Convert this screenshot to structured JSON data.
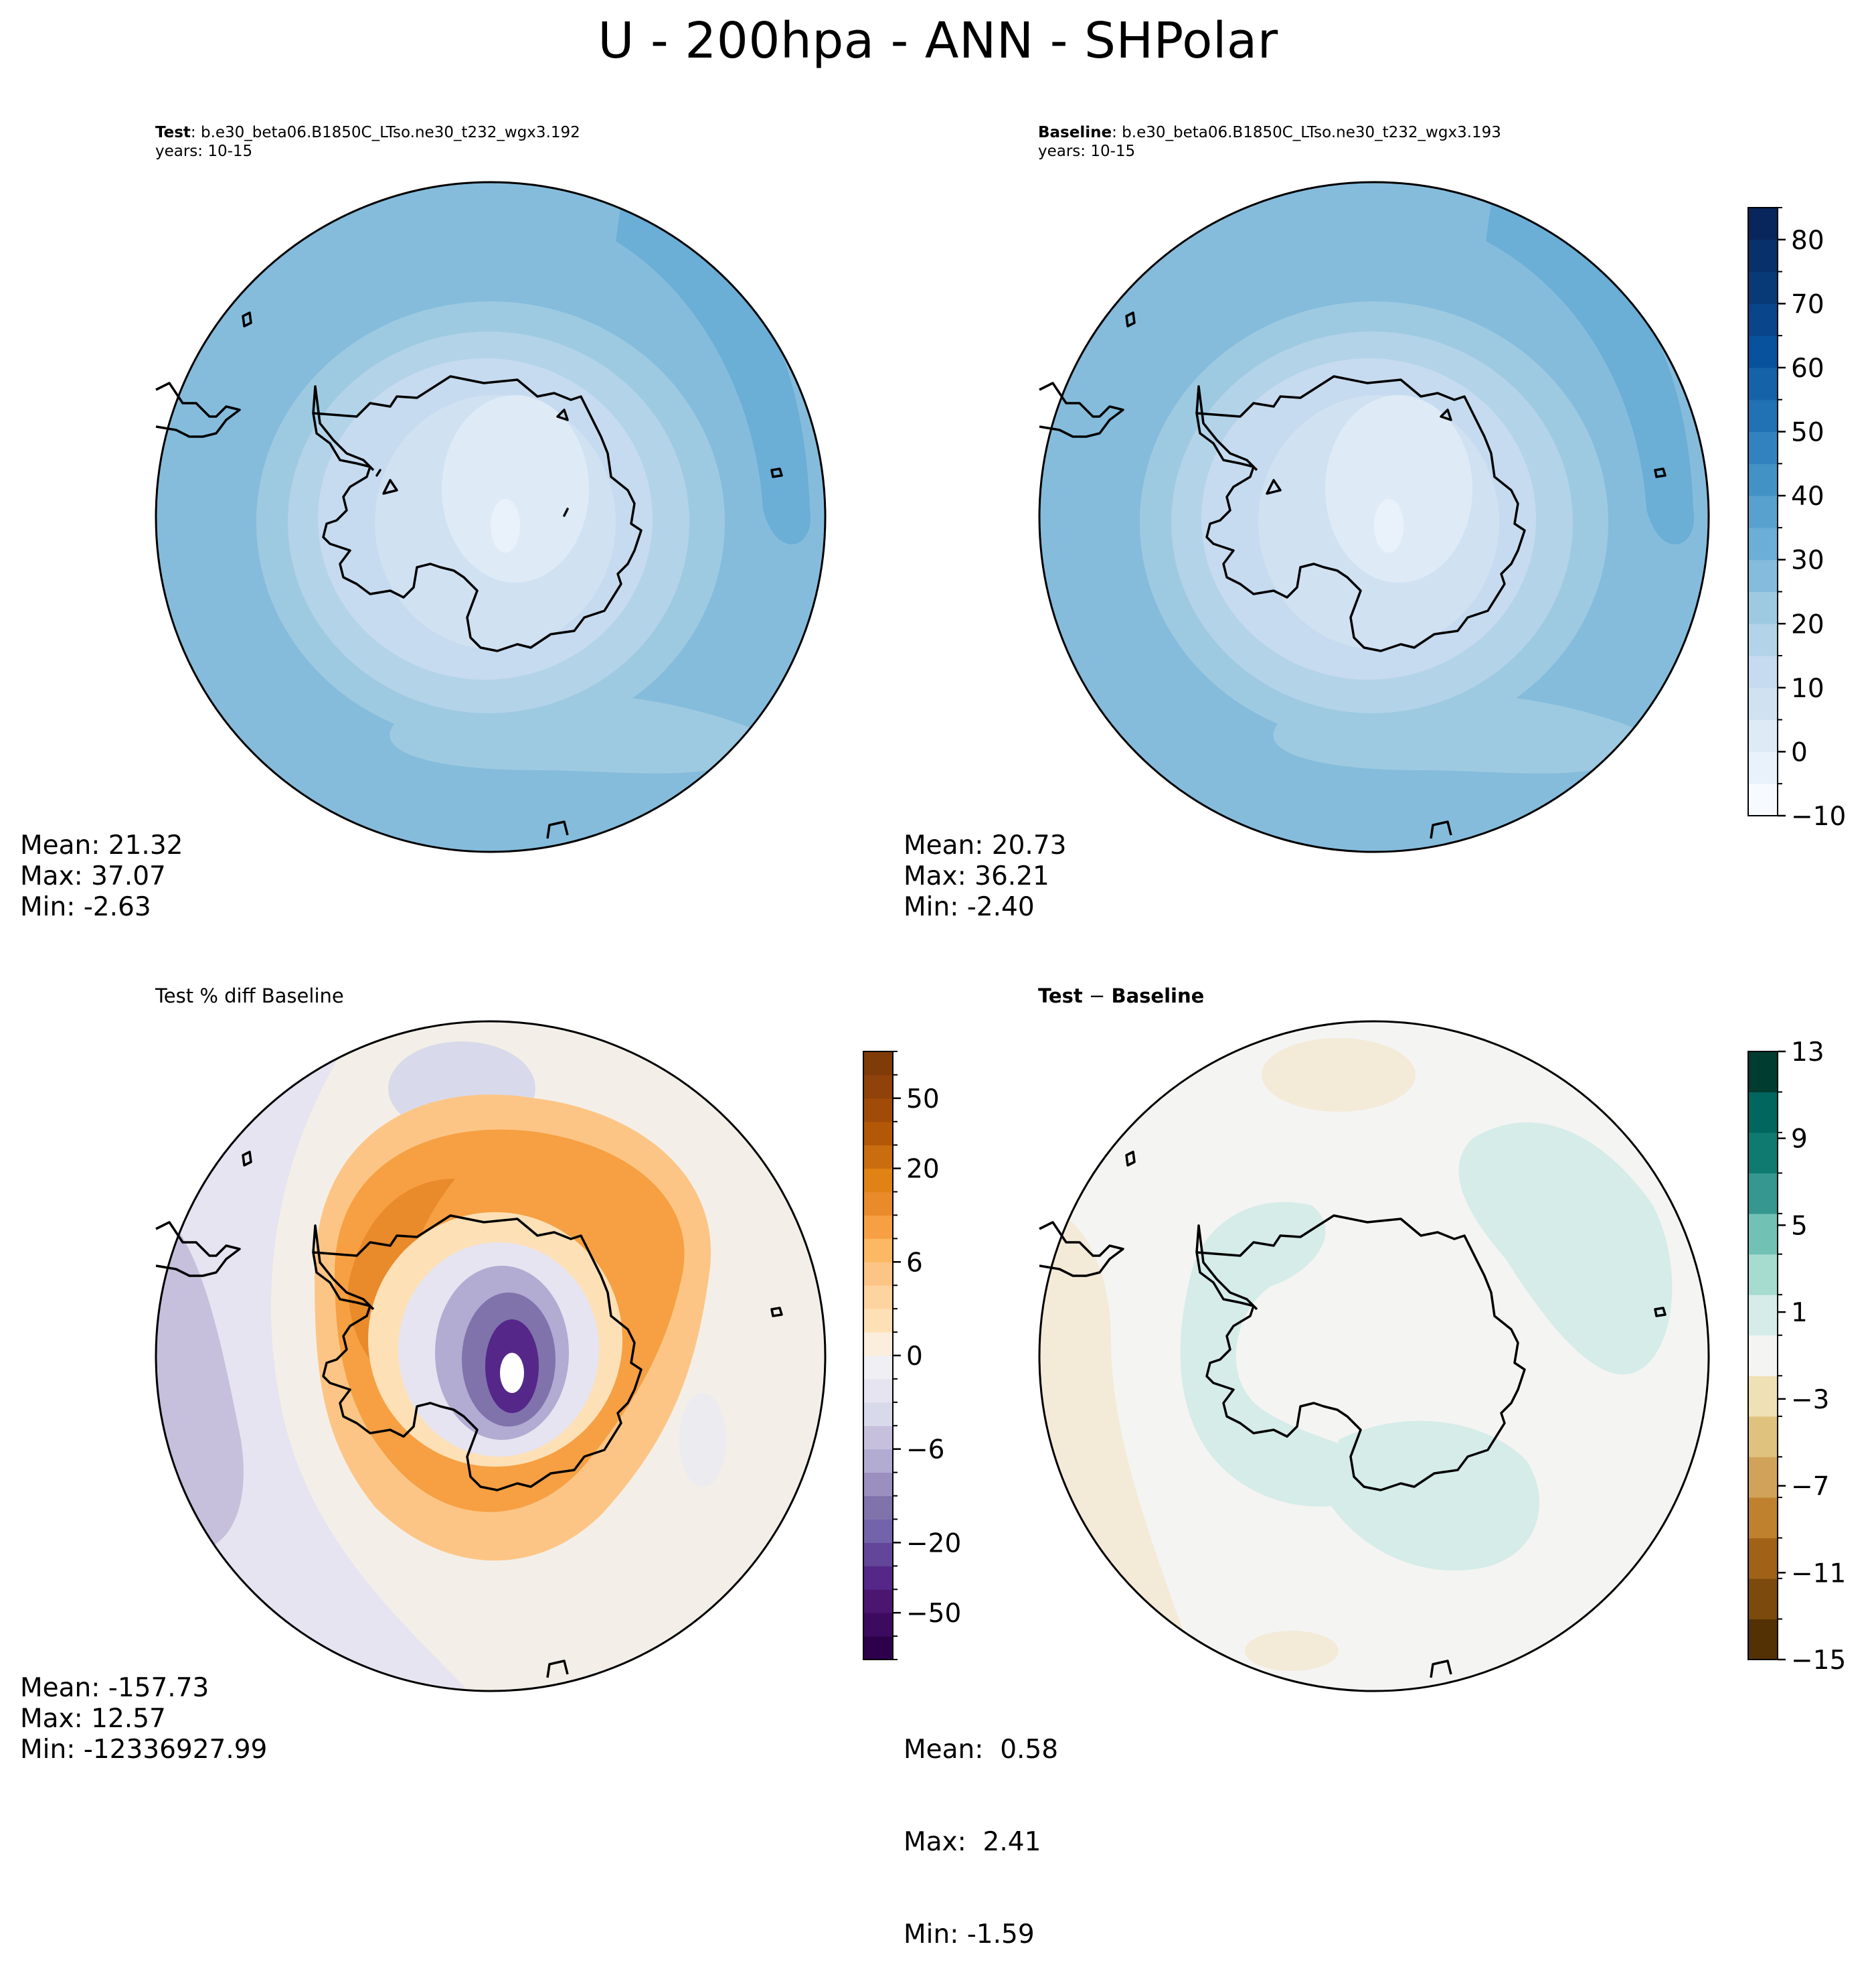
{
  "title": "U - 200hpa - ANN - SHPolar",
  "panels": {
    "test": {
      "label": "Test",
      "case": ": b.e30_beta06.B1850C_LTso.ne30_t232_wgx3.192",
      "years": "years: 10-15",
      "stats": {
        "mean_label": "Mean: 21.32",
        "max_label": "Max: 37.07",
        "min_label": "Min: -2.63"
      }
    },
    "baseline": {
      "label": "Baseline",
      "case": ": b.e30_beta06.B1850C_LTso.ne30_t232_wgx3.193",
      "years": "years: 10-15",
      "stats": {
        "mean_label": "Mean: 20.73",
        "max_label": "Max: 36.21",
        "min_label": "Min: -2.40"
      }
    },
    "pctdiff": {
      "title": "Test % diff Baseline",
      "stats": {
        "mean_label": "Mean: -157.73",
        "max_label": "Max: 12.57",
        "min_label": "Min: -12336927.99"
      }
    },
    "diff": {
      "title_a": "Test",
      "title_op": " − ",
      "title_b": "Baseline",
      "stats": {
        "mean_label": "Mean:  0.58",
        "max_label": "Max:  2.41",
        "min_label": "Min: -1.59"
      }
    }
  },
  "chart_data": [
    {
      "type": "heatmap",
      "name": "Test",
      "projection": "South Polar Stereographic",
      "field": "U 200hPa",
      "mean": 21.32,
      "max": 37.07,
      "min": -2.63,
      "colorbar_shared_with": "Baseline"
    },
    {
      "type": "heatmap",
      "name": "Baseline",
      "projection": "South Polar Stereographic",
      "field": "U 200hPa",
      "mean": 20.73,
      "max": 36.21,
      "min": -2.4,
      "colorbar": {
        "levels": [
          -10,
          -5,
          0,
          5,
          10,
          15,
          20,
          25,
          30,
          35,
          40,
          45,
          50,
          55,
          60,
          65,
          70,
          75,
          80,
          85
        ],
        "tick_values": [
          -10,
          0,
          10,
          20,
          30,
          40,
          50,
          60,
          70,
          80
        ],
        "tick_labels": [
          "−10",
          "0",
          "10",
          "20",
          "30",
          "40",
          "50",
          "60",
          "70",
          "80"
        ],
        "colors": [
          "#f7fbff",
          "#e9f2fb",
          "#deebf7",
          "#d0e1f2",
          "#c6dbef",
          "#b3d3e8",
          "#9ecae1",
          "#85bcdc",
          "#6baed6",
          "#58a1cf",
          "#4292c6",
          "#3282be",
          "#2171b5",
          "#1562a9",
          "#08519c",
          "#08458a",
          "#083a78",
          "#08306b",
          "#08265c"
        ]
      }
    },
    {
      "type": "heatmap",
      "name": "Test % diff Baseline",
      "projection": "South Polar Stereographic",
      "mean": -157.73,
      "max": 12.57,
      "min": -12336927.99,
      "colorbar": {
        "levels": [
          -100,
          -75,
          -50,
          -40,
          -30,
          -20,
          -15,
          -10,
          -8,
          -6,
          -4,
          -2,
          -1,
          0,
          1,
          2,
          4,
          6,
          8,
          10,
          15,
          20,
          30,
          40,
          50,
          75,
          100
        ],
        "tick_labels": [
          "−50",
          "−20",
          "−6",
          "0",
          "6",
          "20",
          "50"
        ],
        "tick_level_index": [
          2,
          5,
          9,
          13,
          17,
          21,
          24
        ],
        "colors": [
          "#2d004b",
          "#3c0a5e",
          "#4b1670",
          "#542788",
          "#63459a",
          "#7263ab",
          "#8073ac",
          "#9b8fc0",
          "#b2abd2",
          "#c6c0dd",
          "#d8daeb",
          "#e6e4f0",
          "#f0eff4",
          "#fbeedd",
          "#fee0b6",
          "#fdd3a0",
          "#fdc585",
          "#fdb863",
          "#f6a043",
          "#e98a2b",
          "#e08214",
          "#c96d0e",
          "#b35806",
          "#a04c08",
          "#8f420a",
          "#7f3b08"
        ]
      }
    },
    {
      "type": "heatmap",
      "name": "Test - Baseline",
      "projection": "South Polar Stereographic",
      "mean": 0.58,
      "max": 2.41,
      "min": -1.59,
      "colorbar": {
        "levels": [
          -15,
          -13,
          -11,
          -9,
          -7,
          -5,
          -3,
          -1,
          1,
          3,
          5,
          7,
          9,
          11,
          13
        ],
        "tick_values": [
          -15,
          -11,
          -7,
          -3,
          1,
          5,
          9,
          13
        ],
        "tick_labels": [
          "−15",
          "−11",
          "−7",
          "−3",
          "1",
          "5",
          "9",
          "13"
        ],
        "colors": [
          "#543005",
          "#7c4a0c",
          "#a06217",
          "#bf812d",
          "#d1a35a",
          "#dfc27d",
          "#f0e0b5",
          "#f4f4f2",
          "#d5ece8",
          "#a6dbcf",
          "#71c2b5",
          "#35978f",
          "#0f7a70",
          "#01665e",
          "#003c30"
        ]
      }
    }
  ]
}
